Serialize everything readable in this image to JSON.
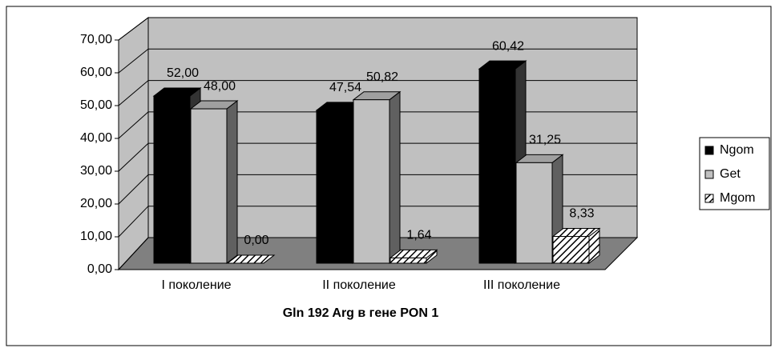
{
  "chart_data": {
    "type": "bar3d",
    "x_label": "Gln 192 Arg в гене PON 1",
    "categories": [
      "I поколение",
      "II поколение",
      "III поколение"
    ],
    "series": [
      {
        "name": "Ngom",
        "color": "#000000",
        "values": [
          52.0,
          47.54,
          60.42
        ],
        "value_labels": [
          "52,00",
          "47,54",
          "60,42"
        ]
      },
      {
        "name": "Get",
        "color": "#c0c0c0",
        "values": [
          48.0,
          50.82,
          31.25
        ],
        "value_labels": [
          "48,00",
          "50,82",
          "31,25"
        ]
      },
      {
        "name": "Mgom",
        "color": "hatch",
        "values": [
          0.0,
          1.64,
          8.33
        ],
        "value_labels": [
          "0,00",
          "1,64",
          "8,33"
        ]
      }
    ],
    "ylim": [
      0,
      70
    ],
    "yticks": [
      {
        "value": 0,
        "label": "0,00"
      },
      {
        "value": 10,
        "label": "10,00"
      },
      {
        "value": 20,
        "label": "20,00"
      },
      {
        "value": 30,
        "label": "30,00"
      },
      {
        "value": 40,
        "label": "40,00"
      },
      {
        "value": 50,
        "label": "50,00"
      },
      {
        "value": 60,
        "label": "60,00"
      },
      {
        "value": 70,
        "label": "70,00"
      }
    ],
    "grid": true,
    "legend": "right"
  }
}
